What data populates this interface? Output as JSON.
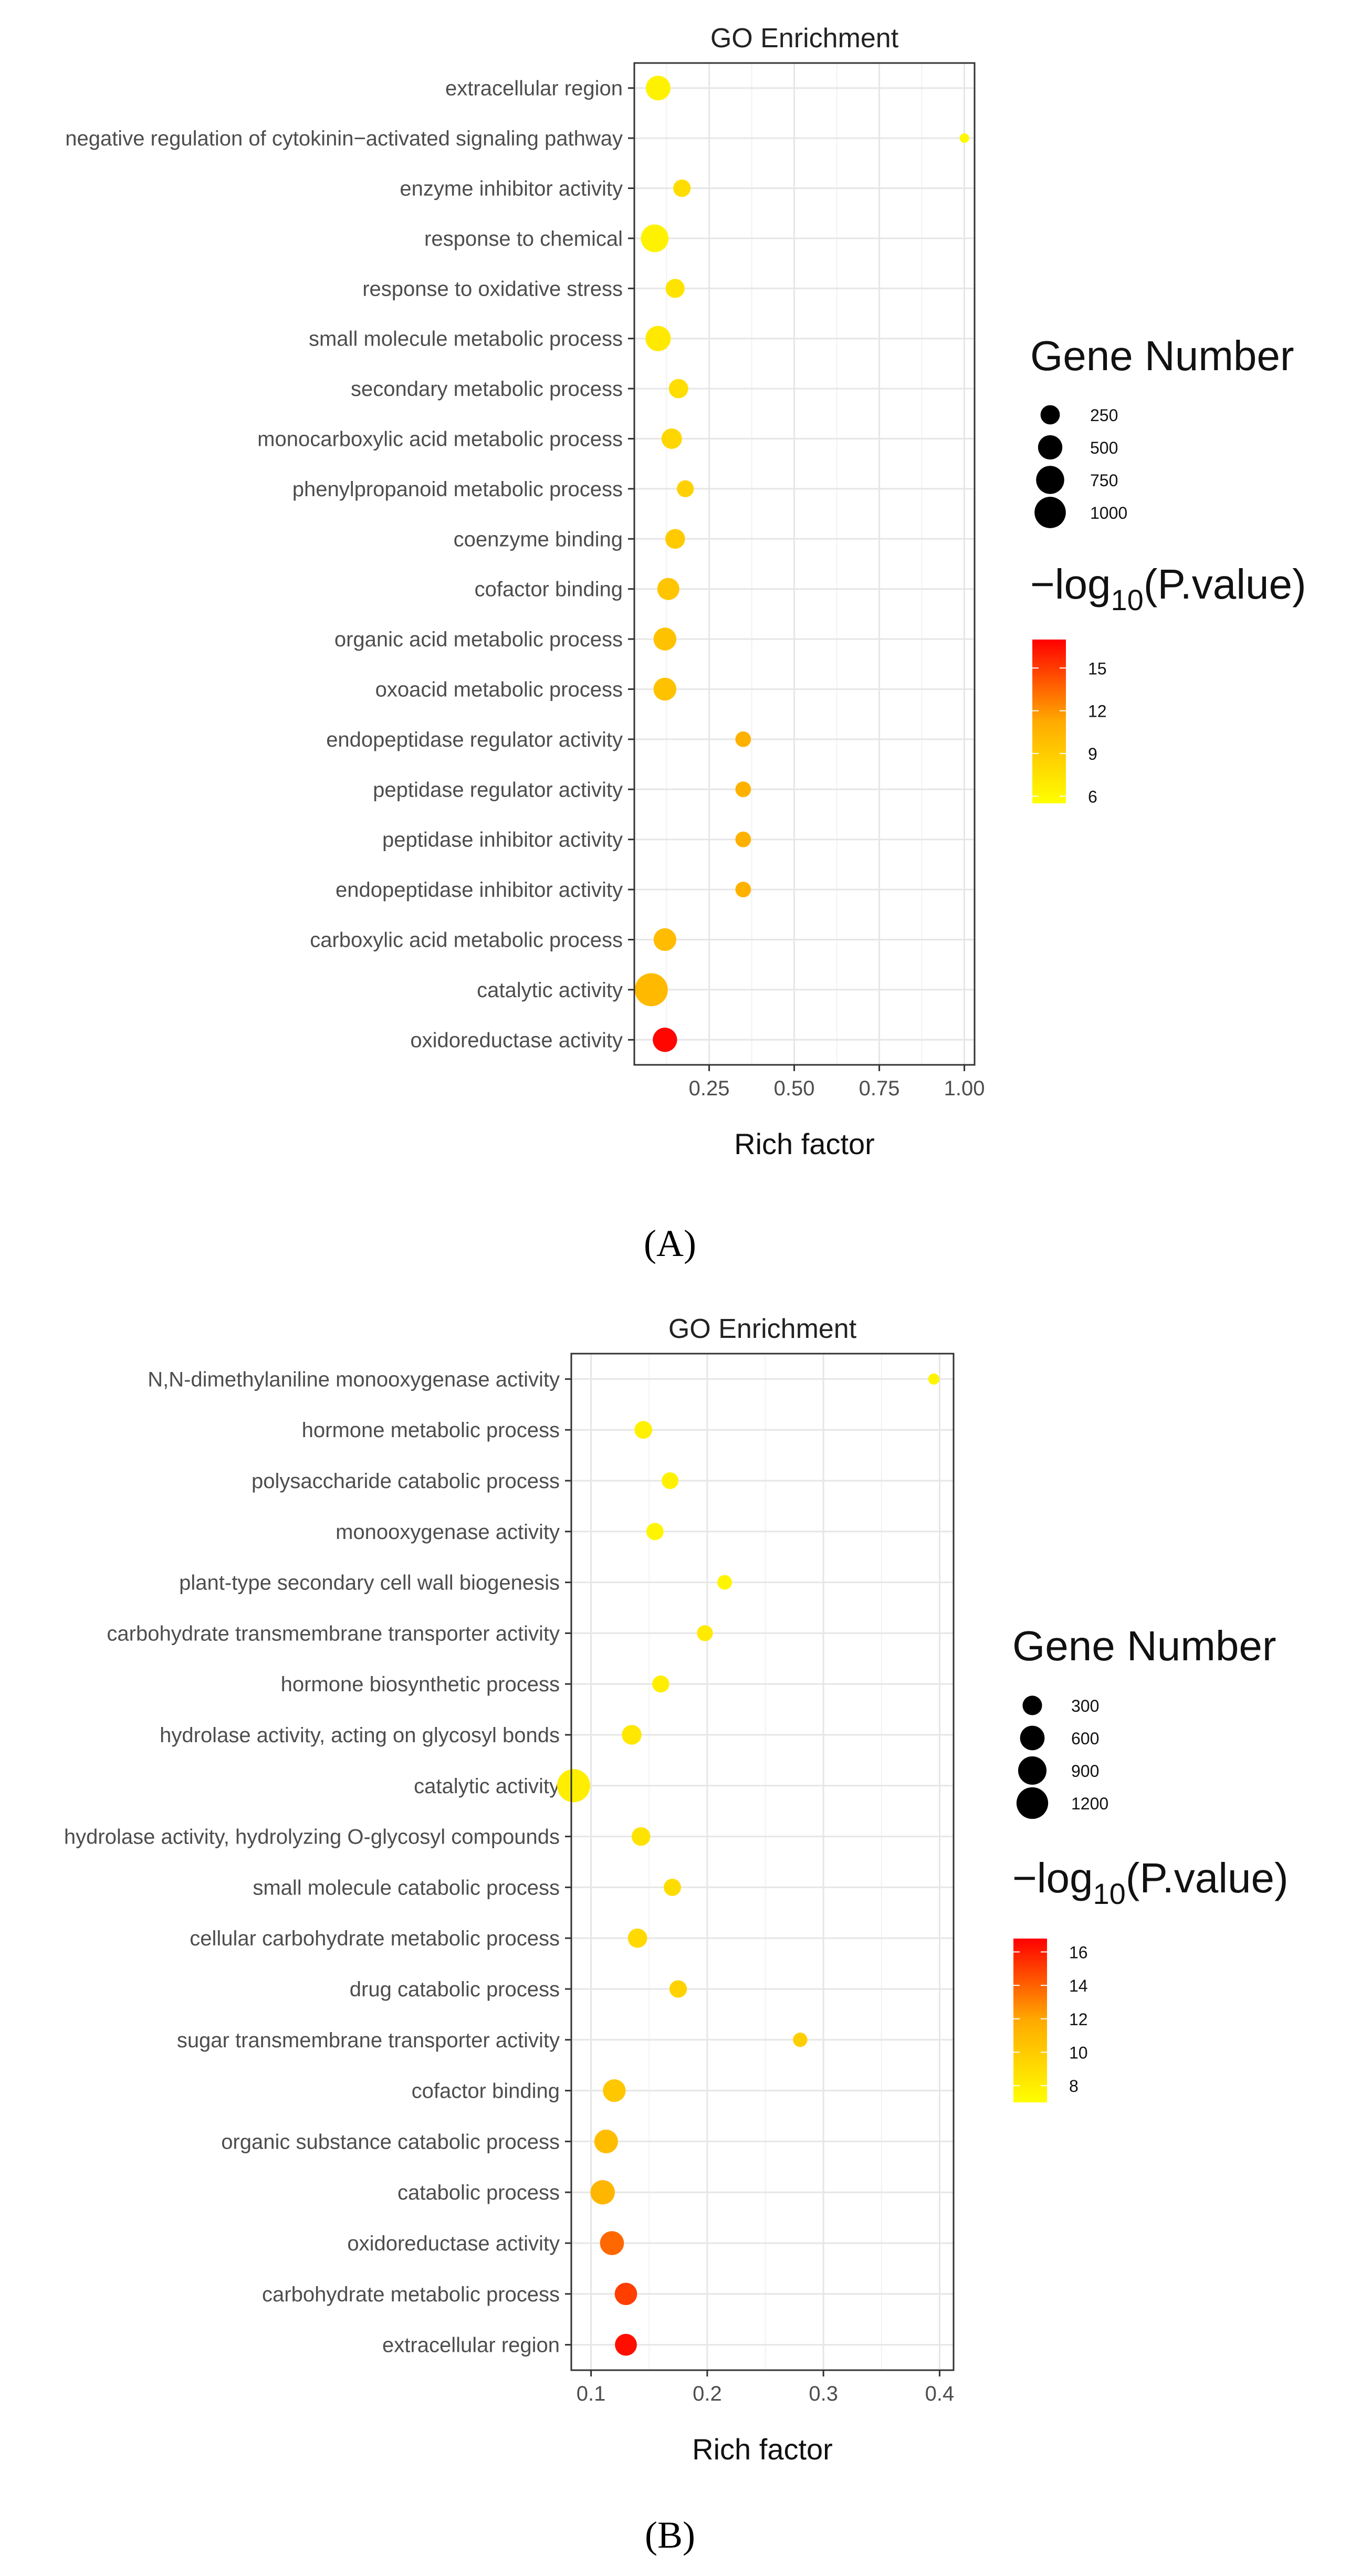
{
  "chart_data": [
    {
      "type": "scatter",
      "panel_label": "(A)",
      "title": "GO Enrichment",
      "xlabel": "Rich factor",
      "ylabel": "",
      "xlim": [
        0.03,
        1.03
      ],
      "xticks": [
        0.25,
        0.5,
        0.75,
        1.0
      ],
      "xtick_labels": [
        "0.25",
        "0.50",
        "0.75",
        "1.00"
      ],
      "size_legend": {
        "title": "Gene Number",
        "values": [
          250,
          500,
          750,
          1000
        ],
        "labels": [
          "250",
          "500",
          "750",
          "1000"
        ]
      },
      "color_legend": {
        "title_main": "−log",
        "title_sub": "10",
        "title_rest": "(P.value)",
        "min": 5.5,
        "max": 17,
        "ticks": [
          6,
          9,
          12,
          15
        ],
        "tick_labels": [
          "6",
          "9",
          "12",
          "15"
        ]
      },
      "points": [
        {
          "term": "extracellular region",
          "rich": 0.1,
          "count": 520,
          "logp": 6.4
        },
        {
          "term": "negative regulation of cytokinin−activated signaling pathway",
          "rich": 1.0,
          "count": 8,
          "logp": 6.0
        },
        {
          "term": "enzyme inhibitor activity",
          "rich": 0.17,
          "count": 180,
          "logp": 7.8
        },
        {
          "term": "response to chemical",
          "rich": 0.09,
          "count": 720,
          "logp": 6.4
        },
        {
          "term": "response to oxidative stress",
          "rich": 0.15,
          "count": 240,
          "logp": 7.4
        },
        {
          "term": "small molecule metabolic process",
          "rich": 0.1,
          "count": 560,
          "logp": 7.0
        },
        {
          "term": "secondary metabolic process",
          "rich": 0.16,
          "count": 250,
          "logp": 7.8
        },
        {
          "term": "monocarboxylic acid metabolic process",
          "rich": 0.14,
          "count": 300,
          "logp": 8.2
        },
        {
          "term": "phenylpropanoid metabolic process",
          "rich": 0.18,
          "count": 160,
          "logp": 8.6
        },
        {
          "term": "coenzyme binding",
          "rich": 0.15,
          "count": 270,
          "logp": 9.0
        },
        {
          "term": "cofactor binding",
          "rich": 0.13,
          "count": 380,
          "logp": 9.4
        },
        {
          "term": "organic acid metabolic process",
          "rich": 0.12,
          "count": 420,
          "logp": 9.6
        },
        {
          "term": "oxoacid metabolic process",
          "rich": 0.12,
          "count": 420,
          "logp": 9.6
        },
        {
          "term": "endopeptidase regulator activity",
          "rich": 0.35,
          "count": 120,
          "logp": 10.8
        },
        {
          "term": "peptidase regulator activity",
          "rich": 0.35,
          "count": 120,
          "logp": 10.8
        },
        {
          "term": "peptidase inhibitor activity",
          "rich": 0.35,
          "count": 120,
          "logp": 10.8
        },
        {
          "term": "endopeptidase inhibitor activity",
          "rich": 0.35,
          "count": 120,
          "logp": 10.8
        },
        {
          "term": "carboxylic acid metabolic process",
          "rich": 0.12,
          "count": 410,
          "logp": 10.0
        },
        {
          "term": "catalytic activity",
          "rich": 0.08,
          "count": 1150,
          "logp": 10.2
        },
        {
          "term": "oxidoreductase activity",
          "rich": 0.12,
          "count": 500,
          "logp": 16.8
        }
      ]
    },
    {
      "type": "scatter",
      "panel_label": "(B)",
      "title": "GO Enrichment",
      "xlabel": "Rich factor",
      "ylabel": "",
      "xlim": [
        0.083,
        0.412
      ],
      "xticks": [
        0.1,
        0.2,
        0.3,
        0.4
      ],
      "xtick_labels": [
        "0.1",
        "0.2",
        "0.3",
        "0.4"
      ],
      "size_legend": {
        "title": "Gene Number",
        "values": [
          300,
          600,
          900,
          1200
        ],
        "labels": [
          "300",
          "600",
          "900",
          "1200"
        ]
      },
      "color_legend": {
        "title_main": "−log",
        "title_sub": "10",
        "title_rest": "(P.value)",
        "min": 7,
        "max": 16.8,
        "ticks": [
          8,
          10,
          12,
          14,
          16
        ],
        "tick_labels": [
          "8",
          "10",
          "12",
          "14",
          "16"
        ]
      },
      "points": [
        {
          "term": "N,N-dimethylaniline monooxygenase activity",
          "rich": 0.395,
          "count": 30,
          "logp": 7.6
        },
        {
          "term": "hormone metabolic process",
          "rich": 0.145,
          "count": 220,
          "logp": 7.8
        },
        {
          "term": "polysaccharide catabolic process",
          "rich": 0.168,
          "count": 180,
          "logp": 7.8
        },
        {
          "term": "monooxygenase activity",
          "rich": 0.155,
          "count": 200,
          "logp": 7.6
        },
        {
          "term": "plant-type secondary cell wall biogenesis",
          "rich": 0.215,
          "count": 110,
          "logp": 7.6
        },
        {
          "term": "carbohydrate transmembrane transporter activity",
          "rich": 0.198,
          "count": 150,
          "logp": 8.2
        },
        {
          "term": "hormone biosynthetic process",
          "rich": 0.16,
          "count": 190,
          "logp": 8.0
        },
        {
          "term": "hydrolase activity, acting on glycosyl bonds",
          "rich": 0.135,
          "count": 310,
          "logp": 8.4
        },
        {
          "term": "catalytic activity",
          "rich": 0.085,
          "count": 1350,
          "logp": 8.0
        },
        {
          "term": "hydrolase activity, hydrolyzing O-glycosyl compounds",
          "rich": 0.143,
          "count": 260,
          "logp": 8.6
        },
        {
          "term": "small molecule catabolic process",
          "rich": 0.17,
          "count": 200,
          "logp": 9.0
        },
        {
          "term": "cellular carbohydrate metabolic process",
          "rich": 0.14,
          "count": 290,
          "logp": 9.2
        },
        {
          "term": "drug catabolic process",
          "rich": 0.175,
          "count": 210,
          "logp": 9.6
        },
        {
          "term": "sugar transmembrane transporter activity",
          "rich": 0.28,
          "count": 100,
          "logp": 9.8
        },
        {
          "term": "cofactor binding",
          "rich": 0.12,
          "count": 480,
          "logp": 10.2
        },
        {
          "term": "organic substance catabolic process",
          "rich": 0.113,
          "count": 540,
          "logp": 10.8
        },
        {
          "term": "catabolic process",
          "rich": 0.11,
          "count": 590,
          "logp": 11.2
        },
        {
          "term": "oxidoreductase activity",
          "rich": 0.118,
          "count": 560,
          "logp": 13.8
        },
        {
          "term": "carbohydrate metabolic process",
          "rich": 0.13,
          "count": 460,
          "logp": 15.0
        },
        {
          "term": "extracellular region",
          "rich": 0.13,
          "count": 430,
          "logp": 16.4
        }
      ]
    }
  ]
}
